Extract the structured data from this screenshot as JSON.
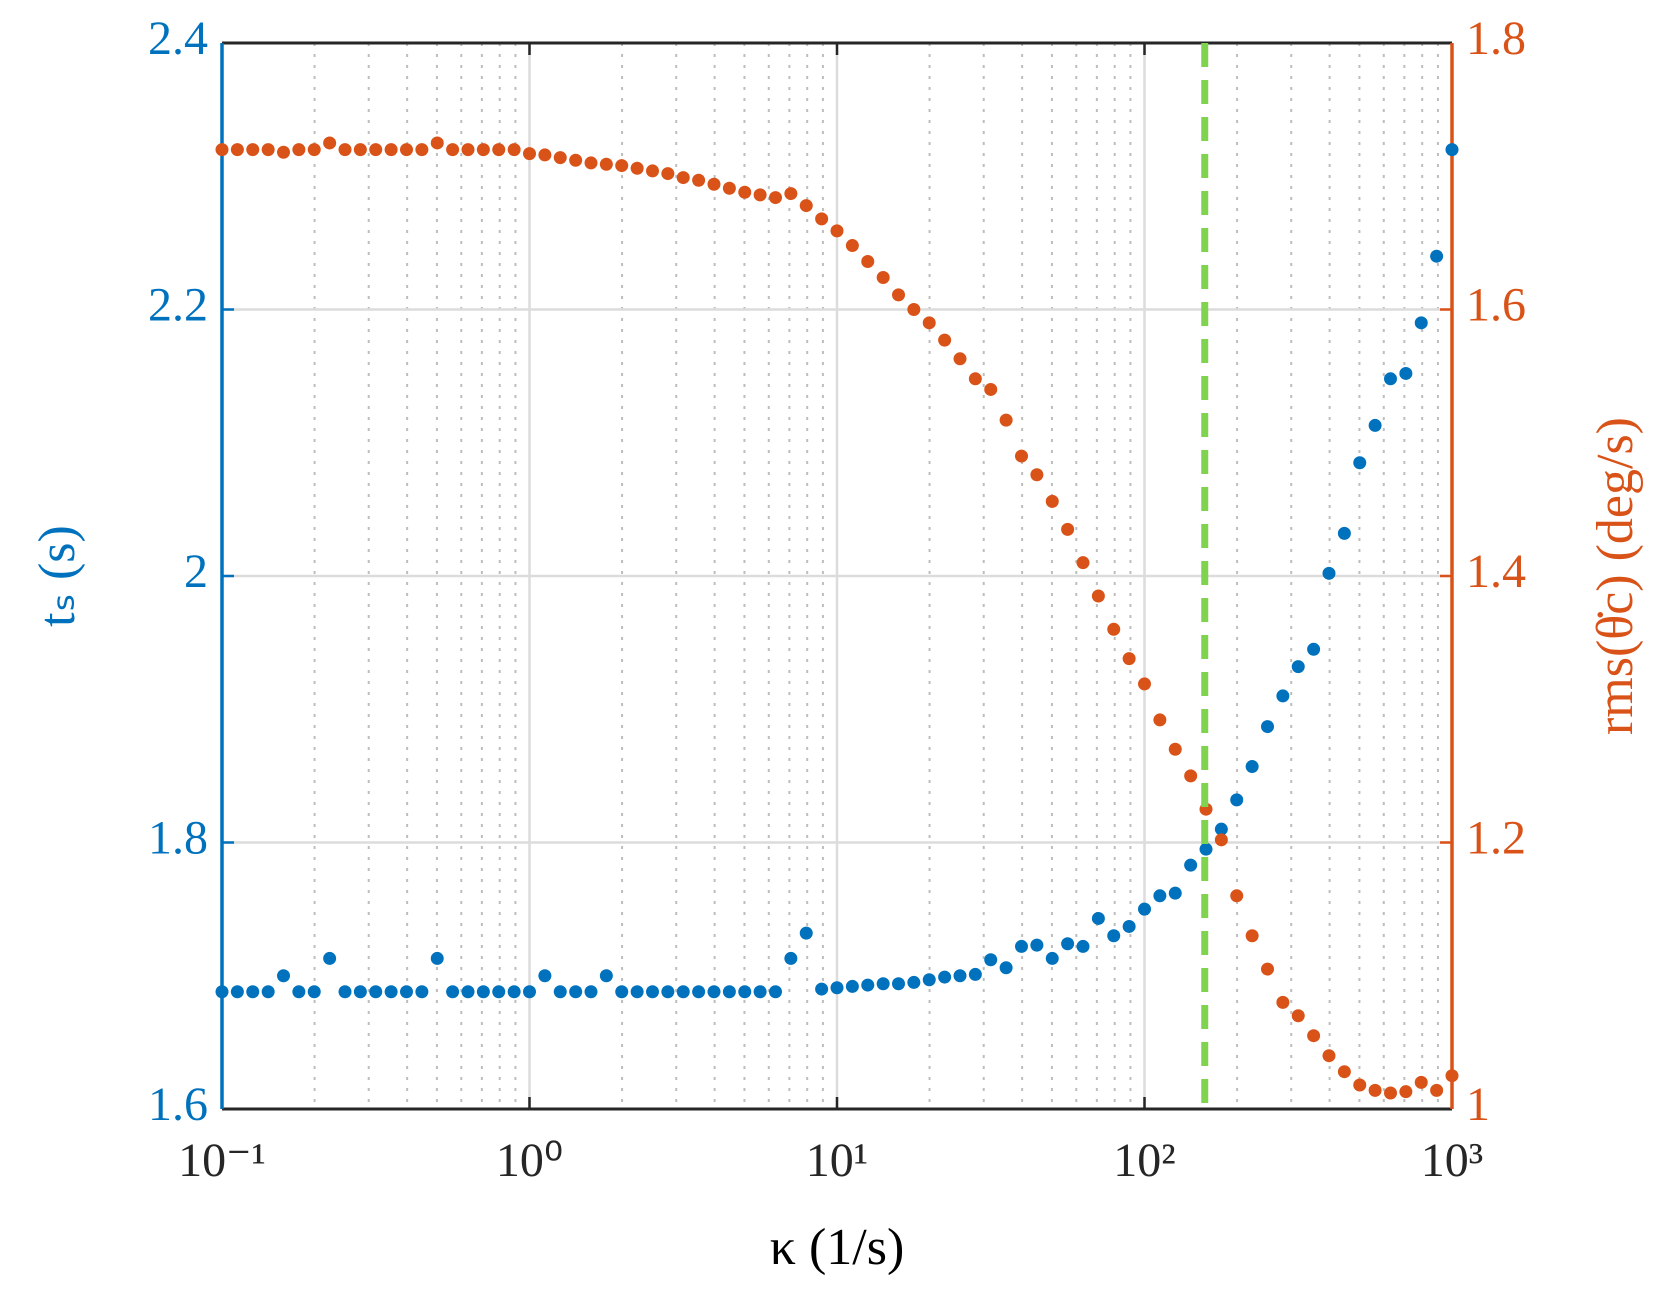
{
  "chart_data": {
    "type": "scatter",
    "xlabel": "κ (1/s)",
    "ylabel": "tₛ (s)",
    "y2label": "rms(θ̇c) (deg/s)",
    "xscale": "log",
    "grid": true,
    "x": [
      0.1,
      0.1122,
      0.1259,
      0.1413,
      0.1585,
      0.1778,
      0.1995,
      0.2239,
      0.2512,
      0.2818,
      0.3162,
      0.3548,
      0.3981,
      0.4467,
      0.5012,
      0.5623,
      0.631,
      0.7079,
      0.7943,
      0.8913,
      1,
      1.122,
      1.259,
      1.413,
      1.585,
      1.778,
      1.995,
      2.239,
      2.512,
      2.818,
      3.162,
      3.548,
      3.981,
      4.467,
      5.012,
      5.623,
      6.31,
      7.079,
      7.943,
      8.913,
      10,
      11.22,
      12.59,
      14.13,
      15.85,
      17.78,
      19.95,
      22.39,
      25.12,
      28.18,
      31.62,
      35.48,
      39.81,
      44.67,
      50.12,
      56.23,
      63.1,
      70.79,
      79.43,
      89.13,
      100,
      112.2,
      125.9,
      141.3,
      158.5,
      177.8,
      199.5,
      223.9,
      251.2,
      281.8,
      316.2,
      354.8,
      398.1,
      446.7,
      501.2,
      562.3,
      631,
      707.9,
      794.3,
      891.3,
      1000
    ],
    "series": [
      {
        "name": "tₛ",
        "color": "#0072bd",
        "axis": "y",
        "values": [
          1.688,
          1.688,
          1.688,
          1.688,
          1.7,
          1.688,
          1.688,
          1.713,
          1.688,
          1.688,
          1.688,
          1.688,
          1.688,
          1.688,
          1.713,
          1.688,
          1.688,
          1.688,
          1.688,
          1.688,
          1.688,
          1.7,
          1.688,
          1.688,
          1.688,
          1.7,
          1.688,
          1.688,
          1.688,
          1.688,
          1.688,
          1.688,
          1.688,
          1.688,
          1.688,
          1.688,
          1.688,
          1.713,
          1.732,
          1.69,
          1.691,
          1.692,
          1.693,
          1.694,
          1.694,
          1.695,
          1.697,
          1.699,
          1.7,
          1.701,
          1.712,
          1.706,
          1.722,
          1.723,
          1.713,
          1.724,
          1.722,
          1.743,
          1.73,
          1.737,
          1.75,
          1.76,
          1.762,
          1.783,
          1.795,
          1.81,
          1.832,
          1.857,
          1.887,
          1.91,
          1.932,
          1.945,
          2.002,
          2.032,
          2.085,
          2.113,
          2.148,
          2.152,
          2.19,
          2.24,
          2.32
        ]
      },
      {
        "name": "rms",
        "color": "#d95319",
        "axis": "y2",
        "values": [
          1.72,
          1.72,
          1.72,
          1.72,
          1.718,
          1.72,
          1.72,
          1.725,
          1.72,
          1.72,
          1.72,
          1.72,
          1.72,
          1.72,
          1.725,
          1.72,
          1.72,
          1.72,
          1.72,
          1.72,
          1.717,
          1.716,
          1.714,
          1.712,
          1.71,
          1.709,
          1.708,
          1.706,
          1.704,
          1.702,
          1.699,
          1.697,
          1.694,
          1.691,
          1.688,
          1.686,
          1.684,
          1.687,
          1.678,
          1.668,
          1.659,
          1.648,
          1.636,
          1.624,
          1.611,
          1.6,
          1.59,
          1.577,
          1.563,
          1.548,
          1.54,
          1.517,
          1.49,
          1.476,
          1.456,
          1.435,
          1.41,
          1.385,
          1.36,
          1.338,
          1.319,
          1.292,
          1.27,
          1.25,
          1.225,
          1.202,
          1.16,
          1.13,
          1.105,
          1.08,
          1.07,
          1.055,
          1.04,
          1.028,
          1.018,
          1.014,
          1.012,
          1.013,
          1.02,
          1.014,
          1.025
        ]
      }
    ],
    "reference_line": {
      "x": 157,
      "color": "#7fd34e",
      "dashed": true
    },
    "xlim": [
      0.1,
      1000
    ],
    "xticks": [
      {
        "value": 0.1,
        "label": "10⁻¹"
      },
      {
        "value": 1,
        "label": "10⁰"
      },
      {
        "value": 10,
        "label": "10¹"
      },
      {
        "value": 100,
        "label": "10²"
      },
      {
        "value": 1000,
        "label": "10³"
      }
    ],
    "xminorticks": [
      0.2,
      0.3,
      0.4,
      0.5,
      0.6,
      0.7,
      0.8,
      0.9,
      2,
      3,
      4,
      5,
      6,
      7,
      8,
      9,
      20,
      30,
      40,
      50,
      60,
      70,
      80,
      90,
      200,
      300,
      400,
      500,
      600,
      700,
      800,
      900
    ],
    "ylim": [
      1.6,
      2.4
    ],
    "yticks": [
      1.6,
      1.8,
      2,
      2.2,
      2.4
    ],
    "y2lim": [
      1,
      1.8
    ],
    "y2ticks": [
      1,
      1.2,
      1.4,
      1.6,
      1.8
    ]
  }
}
